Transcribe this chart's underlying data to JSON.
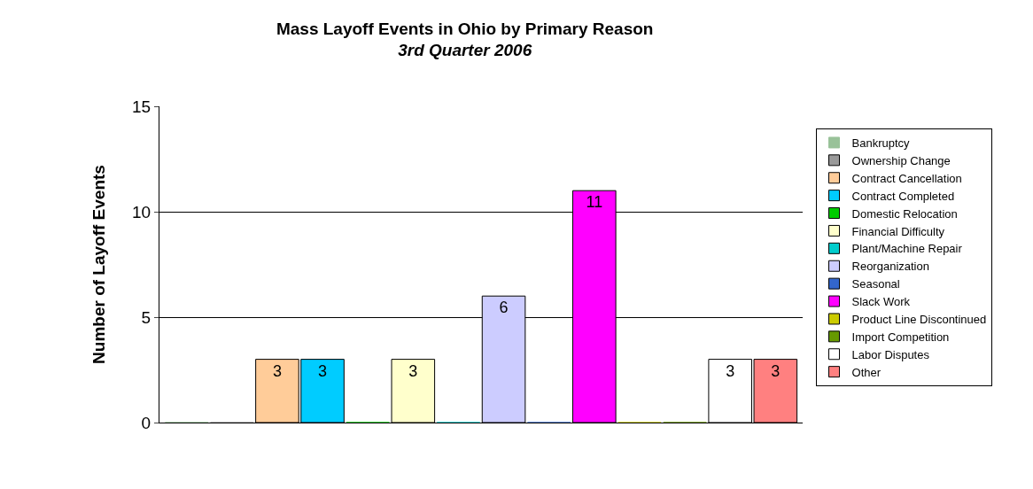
{
  "chart_data": {
    "type": "bar",
    "title": "Mass Layoff Events in Ohio by Primary Reason",
    "subtitle": "3rd Quarter 2006",
    "ylabel": "Number of Layoff Events",
    "categories": [
      null,
      null,
      null,
      null,
      null,
      null,
      null,
      null,
      null,
      null,
      null,
      null,
      null,
      null
    ],
    "series": [
      {
        "name": "Bankruptcy",
        "color": "#99c299",
        "values": [
          0,
          null,
          null,
          null,
          null,
          null,
          null,
          null,
          null,
          null,
          null,
          null,
          null,
          null
        ]
      },
      {
        "name": "Ownership Change",
        "color": "#999999",
        "values": [
          null,
          0,
          null,
          null,
          null,
          null,
          null,
          null,
          null,
          null,
          null,
          null,
          null,
          null
        ]
      },
      {
        "name": "Contract Cancellation",
        "color": "#ffcc99",
        "values": [
          null,
          null,
          3,
          null,
          null,
          null,
          null,
          null,
          null,
          null,
          null,
          null,
          null,
          null
        ],
        "value_labels": [
          null,
          null,
          "3",
          null,
          null,
          null,
          null,
          null,
          null,
          null,
          null,
          null,
          null,
          null
        ]
      },
      {
        "name": "Contract Completed",
        "color": "#00ccff",
        "values": [
          null,
          null,
          null,
          3,
          null,
          null,
          null,
          null,
          null,
          null,
          null,
          null,
          null,
          null
        ],
        "value_labels": [
          null,
          null,
          null,
          "3",
          null,
          null,
          null,
          null,
          null,
          null,
          null,
          null,
          null,
          null
        ]
      },
      {
        "name": "Domestic Relocation",
        "color": "#00cc00",
        "values": [
          null,
          null,
          null,
          null,
          0,
          null,
          null,
          null,
          null,
          null,
          null,
          null,
          null,
          null
        ]
      },
      {
        "name": "Financial Difficulty",
        "color": "#ffffcc",
        "values": [
          null,
          null,
          null,
          null,
          null,
          3,
          null,
          null,
          null,
          null,
          null,
          null,
          null,
          null
        ],
        "value_labels": [
          null,
          null,
          null,
          null,
          null,
          "3",
          null,
          null,
          null,
          null,
          null,
          null,
          null,
          null
        ]
      },
      {
        "name": "Plant/Machine Repair",
        "color": "#00cccc",
        "values": [
          null,
          null,
          null,
          null,
          null,
          null,
          0,
          null,
          null,
          null,
          null,
          null,
          null,
          null
        ]
      },
      {
        "name": "Reorganization",
        "color": "#ccccff",
        "values": [
          null,
          null,
          null,
          null,
          null,
          null,
          null,
          6,
          null,
          null,
          null,
          null,
          null,
          null
        ],
        "value_labels": [
          null,
          null,
          null,
          null,
          null,
          null,
          null,
          "6",
          null,
          null,
          null,
          null,
          null,
          null
        ]
      },
      {
        "name": "Seasonal",
        "color": "#3366cc",
        "values": [
          null,
          null,
          null,
          null,
          null,
          null,
          null,
          null,
          0,
          null,
          null,
          null,
          null,
          null
        ]
      },
      {
        "name": "Slack Work",
        "color": "#ff00ff",
        "values": [
          null,
          null,
          null,
          null,
          null,
          null,
          null,
          null,
          null,
          11,
          null,
          null,
          null,
          null
        ],
        "value_labels": [
          null,
          null,
          null,
          null,
          null,
          null,
          null,
          null,
          null,
          "11",
          null,
          null,
          null,
          null
        ]
      },
      {
        "name": "Product Line Discontinued",
        "color": "#cccc00",
        "values": [
          null,
          null,
          null,
          null,
          null,
          null,
          null,
          null,
          null,
          null,
          0,
          null,
          null,
          null
        ]
      },
      {
        "name": "Import Competition",
        "color": "#669900",
        "values": [
          null,
          null,
          null,
          null,
          null,
          null,
          null,
          null,
          null,
          null,
          null,
          0,
          null,
          null
        ]
      },
      {
        "name": "Labor Disputes",
        "color": "#ffffff",
        "values": [
          null,
          null,
          null,
          null,
          null,
          null,
          null,
          null,
          null,
          null,
          null,
          null,
          3,
          null
        ],
        "value_labels": [
          null,
          null,
          null,
          null,
          null,
          null,
          null,
          null,
          null,
          null,
          null,
          null,
          "3",
          null
        ]
      },
      {
        "name": "Other",
        "color": "#ff8080",
        "values": [
          null,
          null,
          null,
          null,
          null,
          null,
          null,
          null,
          null,
          null,
          null,
          null,
          null,
          3
        ],
        "value_labels": [
          null,
          null,
          null,
          null,
          null,
          null,
          null,
          null,
          null,
          null,
          null,
          null,
          null,
          "3"
        ]
      }
    ],
    "ylim": [
      0,
      15
    ],
    "yticks": [
      0,
      5,
      10,
      15
    ],
    "grid": "y",
    "legend": "right"
  }
}
